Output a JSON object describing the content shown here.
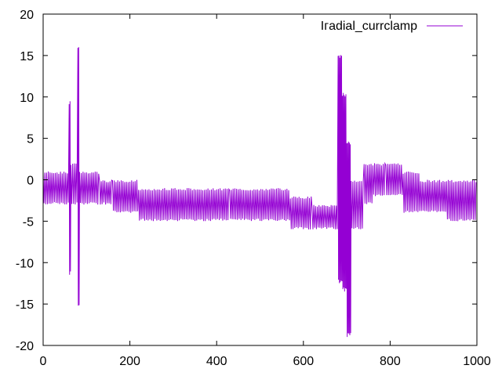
{
  "chart_data": {
    "type": "line",
    "title": "",
    "xlabel": "",
    "ylabel": "",
    "xlim": [
      0,
      1000
    ],
    "ylim": [
      -20,
      20
    ],
    "xticks": [
      0,
      200,
      400,
      600,
      800,
      1000
    ],
    "yticks": [
      -20,
      -15,
      -10,
      -5,
      0,
      5,
      10,
      15,
      20
    ],
    "grid": false,
    "legend": {
      "position": "top-right"
    },
    "series": [
      {
        "name": "I_radial_currclamp",
        "legend_text": "Iᴦadial_currclamp",
        "color": "#9400d3",
        "envelope": [
          {
            "x_start": 0,
            "x_end": 60,
            "low": -3,
            "high": 1
          },
          {
            "x_start": 60,
            "x_end": 64,
            "low": -11.5,
            "high": 9.5
          },
          {
            "x_start": 64,
            "x_end": 80,
            "low": -3,
            "high": 2
          },
          {
            "x_start": 80,
            "x_end": 84,
            "low": -15.3,
            "high": 16.2
          },
          {
            "x_start": 84,
            "x_end": 130,
            "low": -3,
            "high": 1
          },
          {
            "x_start": 130,
            "x_end": 160,
            "low": -3,
            "high": 0
          },
          {
            "x_start": 160,
            "x_end": 220,
            "low": -4,
            "high": 0
          },
          {
            "x_start": 220,
            "x_end": 320,
            "low": -5,
            "high": -1
          },
          {
            "x_start": 320,
            "x_end": 430,
            "low": -5,
            "high": -1
          },
          {
            "x_start": 430,
            "x_end": 570,
            "low": -5,
            "high": -1
          },
          {
            "x_start": 570,
            "x_end": 620,
            "low": -6,
            "high": -2
          },
          {
            "x_start": 620,
            "x_end": 680,
            "low": -6,
            "high": -3
          },
          {
            "x_start": 680,
            "x_end": 690,
            "low": -12.5,
            "high": 15.2
          },
          {
            "x_start": 690,
            "x_end": 700,
            "low": -13.5,
            "high": 10.5
          },
          {
            "x_start": 700,
            "x_end": 710,
            "low": -19,
            "high": 4.7
          },
          {
            "x_start": 710,
            "x_end": 740,
            "low": -6,
            "high": 0
          },
          {
            "x_start": 740,
            "x_end": 760,
            "low": -3,
            "high": 2
          },
          {
            "x_start": 760,
            "x_end": 790,
            "low": -2,
            "high": 2
          },
          {
            "x_start": 790,
            "x_end": 830,
            "low": -2,
            "high": 2
          },
          {
            "x_start": 830,
            "x_end": 870,
            "low": -4,
            "high": 1
          },
          {
            "x_start": 870,
            "x_end": 930,
            "low": -4,
            "high": 0
          },
          {
            "x_start": 930,
            "x_end": 1000,
            "low": -5,
            "high": 0
          }
        ]
      }
    ]
  }
}
